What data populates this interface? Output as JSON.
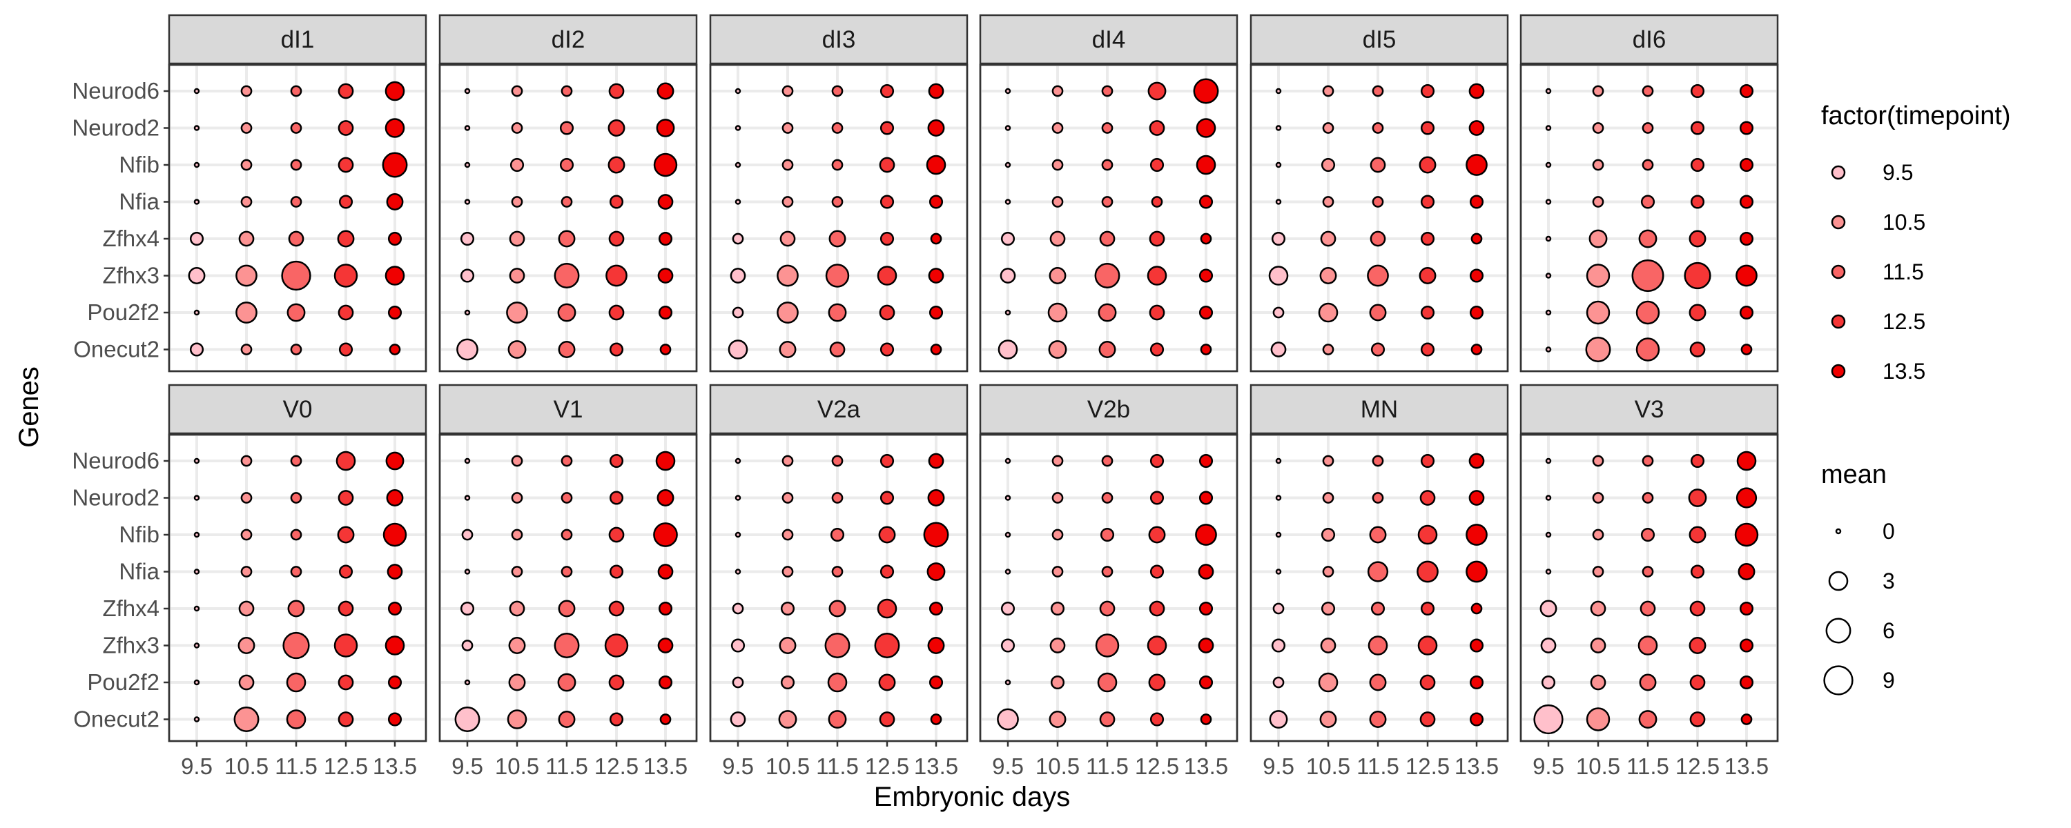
{
  "chart_data": {
    "type": "scatter",
    "subtype": "faceted dot plot",
    "xlabel": "Embryonic days",
    "ylabel": "Genes",
    "x_categories": [
      "9.5",
      "10.5",
      "11.5",
      "12.5",
      "13.5"
    ],
    "genes": [
      "Neurod6",
      "Neurod2",
      "Nfib",
      "Nfia",
      "Zfhx4",
      "Zfhx3",
      "Pou2f2",
      "Onecut2"
    ],
    "grid": true,
    "panels": [
      {
        "name": "dI1",
        "values": [
          [
            0,
            0.5,
            0.5,
            1.5,
            3
          ],
          [
            0,
            0.5,
            0.5,
            1.5,
            3
          ],
          [
            0,
            0.5,
            0.5,
            1.5,
            6
          ],
          [
            0,
            0.5,
            0.5,
            1,
            2
          ],
          [
            1,
            1.5,
            1.5,
            2,
            1
          ],
          [
            2,
            4,
            9,
            5,
            3
          ],
          [
            0,
            4,
            2.5,
            1.5,
            1
          ],
          [
            1,
            0.5,
            0.5,
            1,
            0.5
          ]
        ]
      },
      {
        "name": "dI2",
        "values": [
          [
            0,
            0.5,
            0.5,
            1.5,
            2
          ],
          [
            0,
            0.5,
            1,
            2,
            2.5
          ],
          [
            0,
            1,
            1,
            2,
            5
          ],
          [
            0,
            0.5,
            0.5,
            1,
            1.5
          ],
          [
            1,
            1.5,
            2,
            1.5,
            1
          ],
          [
            1,
            1.5,
            6,
            4,
            1.5
          ],
          [
            0,
            4,
            2.5,
            1.5,
            1
          ],
          [
            4,
            2.5,
            2,
            1,
            0.5
          ]
        ]
      },
      {
        "name": "dI3",
        "values": [
          [
            0,
            0.5,
            0.5,
            1,
            1.5
          ],
          [
            0,
            0.5,
            0.5,
            1,
            2
          ],
          [
            0,
            0.5,
            0.5,
            1.5,
            3
          ],
          [
            0,
            0.5,
            0.5,
            1,
            1
          ],
          [
            0.5,
            1.5,
            2,
            1,
            0.5
          ],
          [
            1.5,
            4,
            5,
            3,
            1.5
          ],
          [
            0.5,
            4,
            2.5,
            1.5,
            1
          ],
          [
            3,
            2,
            1.5,
            1,
            0.5
          ]
        ]
      },
      {
        "name": "dI4",
        "values": [
          [
            0,
            0.5,
            0.5,
            2.5,
            6
          ],
          [
            0,
            0.5,
            0.5,
            1.5,
            3
          ],
          [
            0,
            0.5,
            0.5,
            1,
            3
          ],
          [
            0,
            0.5,
            0.5,
            0.5,
            1
          ],
          [
            1,
            1.5,
            1.5,
            1.5,
            0.5
          ],
          [
            1.5,
            2,
            6,
            3,
            1
          ],
          [
            0,
            3,
            2.5,
            1.5,
            1
          ],
          [
            3,
            2.5,
            2,
            1,
            0.5
          ]
        ]
      },
      {
        "name": "dI5",
        "values": [
          [
            0,
            0.5,
            0.5,
            1,
            1.5
          ],
          [
            0,
            0.5,
            0.5,
            1,
            1.5
          ],
          [
            0,
            1,
            1.5,
            2,
            4
          ],
          [
            0,
            0.5,
            0.5,
            1,
            1
          ],
          [
            1,
            1.5,
            1.5,
            1,
            0.5
          ],
          [
            3,
            2,
            4,
            2,
            1
          ],
          [
            0.5,
            3,
            2,
            1,
            1
          ],
          [
            1.5,
            0.5,
            1,
            1,
            0.5
          ]
        ]
      },
      {
        "name": "dI6",
        "values": [
          [
            0,
            0.5,
            0.5,
            1,
            1
          ],
          [
            0,
            0.5,
            0.5,
            1,
            1
          ],
          [
            0,
            0.5,
            0.5,
            1,
            1
          ],
          [
            0,
            0.5,
            1,
            1,
            1
          ],
          [
            0,
            2.5,
            2.5,
            2,
            1
          ],
          [
            0,
            5,
            11,
            7,
            4
          ],
          [
            0,
            5,
            5,
            2,
            1
          ],
          [
            0,
            6,
            5,
            1.5,
            0.5
          ]
        ]
      },
      {
        "name": "V0",
        "values": [
          [
            0,
            0.5,
            0.5,
            3,
            2.5
          ],
          [
            0,
            0.5,
            0.5,
            1.5,
            2
          ],
          [
            0,
            0.5,
            0.5,
            2,
            5
          ],
          [
            0,
            0.5,
            0.5,
            1,
            1.5
          ],
          [
            0,
            1.5,
            2,
            1.5,
            1
          ],
          [
            0,
            2,
            7,
            5,
            3
          ],
          [
            0,
            1.5,
            3,
            1.5,
            1
          ],
          [
            0,
            6,
            3,
            1.5,
            1
          ]
        ]
      },
      {
        "name": "V1",
        "values": [
          [
            0,
            0.5,
            0.5,
            1,
            3
          ],
          [
            0,
            0.5,
            0.5,
            1,
            2
          ],
          [
            0.5,
            0.5,
            0.5,
            1.5,
            5.5
          ],
          [
            0,
            0.5,
            0.5,
            1,
            1.5
          ],
          [
            1,
            1.5,
            2,
            1.5,
            1
          ],
          [
            0.5,
            2,
            6,
            5,
            1.5
          ],
          [
            0,
            2,
            2.5,
            1.5,
            1
          ],
          [
            6,
            3,
            2,
            1,
            0.5
          ]
        ]
      },
      {
        "name": "V2a",
        "values": [
          [
            0,
            0.5,
            0.5,
            1,
            1.5
          ],
          [
            0,
            0.5,
            0.5,
            1,
            2
          ],
          [
            0,
            0.5,
            1,
            2,
            6
          ],
          [
            0,
            0.5,
            0.5,
            1,
            2.5
          ],
          [
            0.5,
            1,
            2,
            3,
            1
          ],
          [
            1,
            2,
            6,
            6,
            2
          ],
          [
            0.5,
            1,
            3,
            2,
            1
          ],
          [
            1.5,
            2.5,
            2.5,
            1.5,
            0.5
          ]
        ]
      },
      {
        "name": "V2b",
        "values": [
          [
            0,
            0.5,
            0.5,
            1,
            1
          ],
          [
            0,
            0.5,
            0.5,
            1,
            1
          ],
          [
            0,
            0.5,
            1,
            2,
            4
          ],
          [
            0,
            0.5,
            0.5,
            1,
            1.5
          ],
          [
            1,
            1,
            1.5,
            1.5,
            1
          ],
          [
            1,
            1.5,
            5,
            3,
            1.5
          ],
          [
            0,
            1,
            3,
            2,
            1
          ],
          [
            4,
            2,
            1.5,
            1,
            0.5
          ]
        ]
      },
      {
        "name": "MN",
        "values": [
          [
            0,
            0.5,
            0.5,
            1,
            1.5
          ],
          [
            0,
            0.5,
            0.5,
            1.5,
            1.5
          ],
          [
            0,
            1,
            2,
            3,
            4
          ],
          [
            0,
            0.5,
            3.5,
            4,
            4
          ],
          [
            0.5,
            1,
            1,
            1,
            0.5
          ],
          [
            1,
            1.5,
            3,
            3,
            1
          ],
          [
            0.5,
            3,
            2,
            1.5,
            1
          ],
          [
            2.5,
            2,
            2,
            1.5,
            1
          ]
        ]
      },
      {
        "name": "V3",
        "values": [
          [
            0,
            0.5,
            0.5,
            1,
            3
          ],
          [
            0,
            0.5,
            0.5,
            2.5,
            3.5
          ],
          [
            0,
            0.5,
            1,
            2,
            5
          ],
          [
            0,
            0.5,
            0.5,
            1,
            2
          ],
          [
            2,
            1.5,
            1.5,
            1.5,
            1
          ],
          [
            1.5,
            1.5,
            3,
            2,
            1
          ],
          [
            1,
            1.5,
            2,
            1.5,
            1
          ],
          [
            9,
            5,
            2.5,
            1.5,
            0.5
          ]
        ]
      }
    ],
    "legend_color": {
      "title": "factor(timepoint)",
      "items": [
        {
          "label": "9.5",
          "color": "#ffc0cb"
        },
        {
          "label": "10.5",
          "color": "#fc9393"
        },
        {
          "label": "11.5",
          "color": "#f96565"
        },
        {
          "label": "12.5",
          "color": "#f53636"
        },
        {
          "label": "13.5",
          "color": "#f00000"
        }
      ]
    },
    "legend_size": {
      "title": "mean",
      "items": [
        {
          "label": "0",
          "value": 0
        },
        {
          "label": "3",
          "value": 3
        },
        {
          "label": "6",
          "value": 6
        },
        {
          "label": "9",
          "value": 9
        }
      ]
    },
    "legend_position": "right"
  }
}
